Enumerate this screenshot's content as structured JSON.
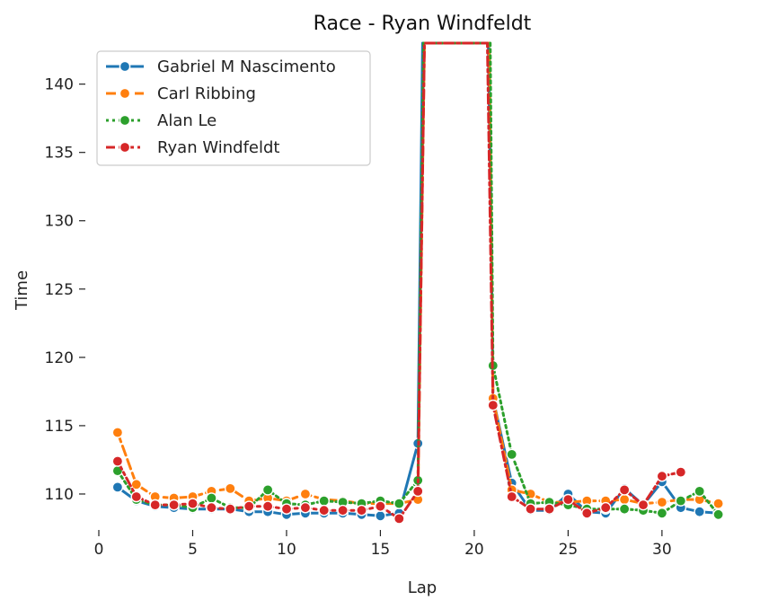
{
  "chart_data": {
    "type": "line",
    "title": "Race - Ryan Windfeldt",
    "xlabel": "Lap",
    "ylabel": "Time",
    "xlim": [
      0,
      33.5
    ],
    "ylim": [
      107.5,
      143
    ],
    "xticks": [
      "0",
      "5",
      "10",
      "15",
      "20",
      "25",
      "30"
    ],
    "yticks": [
      "110",
      "115",
      "120",
      "125",
      "130",
      "135",
      "140"
    ],
    "grid": false,
    "legend": "top-left",
    "series": [
      {
        "name": "Gabriel M Nascimento",
        "color": "#1f77b4",
        "dash": "solid",
        "points": [
          [
            1,
            110.5
          ],
          [
            2,
            109.5
          ],
          [
            3,
            109.1
          ],
          [
            4,
            109.0
          ],
          [
            5,
            108.9
          ],
          [
            6,
            108.9
          ],
          [
            7,
            108.9
          ],
          [
            8,
            108.7
          ],
          [
            9,
            108.7
          ],
          [
            10,
            108.5
          ],
          [
            11,
            108.6
          ],
          [
            12,
            108.6
          ],
          [
            13,
            108.6
          ],
          [
            14,
            108.5
          ],
          [
            15,
            108.4
          ],
          [
            16,
            108.6
          ],
          [
            17,
            113.7
          ],
          [
            18,
            null
          ],
          [
            19,
            null
          ],
          [
            20,
            null
          ],
          [
            21,
            null
          ],
          [
            22,
            110.8
          ],
          [
            23,
            108.8
          ],
          [
            24,
            108.8
          ],
          [
            25,
            110.0
          ],
          [
            26,
            108.7
          ],
          [
            27,
            108.6
          ],
          [
            28,
            110.4
          ],
          [
            29,
            109.2
          ],
          [
            30,
            110.9
          ],
          [
            31,
            109.0
          ],
          [
            32,
            108.7
          ],
          [
            33,
            108.6
          ]
        ],
        "spike": [
          [
            17.25,
            143
          ],
          [
            20.75,
            143
          ],
          [
            20.9,
            129.5
          ],
          [
            21,
            117.0
          ]
        ]
      },
      {
        "name": "Carl Ribbing",
        "color": "#ff7f0e",
        "dash": "dashed",
        "points": [
          [
            1,
            114.5
          ],
          [
            2,
            110.7
          ],
          [
            3,
            109.8
          ],
          [
            4,
            109.7
          ],
          [
            5,
            109.8
          ],
          [
            6,
            110.2
          ],
          [
            7,
            110.4
          ],
          [
            8,
            109.5
          ],
          [
            9,
            109.7
          ],
          [
            10,
            109.5
          ],
          [
            11,
            110.0
          ],
          [
            12,
            109.6
          ],
          [
            13,
            109.5
          ],
          [
            14,
            109.3
          ],
          [
            15,
            109.3
          ],
          [
            16,
            109.3
          ],
          [
            17,
            109.6
          ],
          [
            18,
            null
          ],
          [
            19,
            null
          ],
          [
            20,
            null
          ],
          [
            21,
            117.0
          ],
          [
            22,
            110.3
          ],
          [
            23,
            110.0
          ],
          [
            24,
            109.4
          ],
          [
            25,
            109.4
          ],
          [
            26,
            109.5
          ],
          [
            27,
            109.5
          ],
          [
            28,
            109.6
          ],
          [
            29,
            109.3
          ],
          [
            30,
            109.4
          ],
          [
            31,
            109.6
          ],
          [
            32,
            109.6
          ],
          [
            33,
            109.3
          ]
        ],
        "spike": [
          [
            17.35,
            143
          ],
          [
            20.8,
            143
          ],
          [
            21,
            117.0
          ]
        ]
      },
      {
        "name": "Alan Le",
        "color": "#2ca02c",
        "dash": "dotted",
        "points": [
          [
            1,
            111.7
          ],
          [
            2,
            109.6
          ],
          [
            3,
            109.2
          ],
          [
            4,
            109.2
          ],
          [
            5,
            109.0
          ],
          [
            6,
            109.7
          ],
          [
            7,
            109.0
          ],
          [
            8,
            109.0
          ],
          [
            9,
            110.3
          ],
          [
            10,
            109.3
          ],
          [
            11,
            109.2
          ],
          [
            12,
            109.5
          ],
          [
            13,
            109.4
          ],
          [
            14,
            109.3
          ],
          [
            15,
            109.5
          ],
          [
            16,
            109.3
          ],
          [
            17,
            111.0
          ],
          [
            18,
            null
          ],
          [
            19,
            null
          ],
          [
            20,
            null
          ],
          [
            21,
            119.4
          ],
          [
            22,
            112.9
          ],
          [
            23,
            109.3
          ],
          [
            24,
            109.4
          ],
          [
            25,
            109.2
          ],
          [
            26,
            108.9
          ],
          [
            27,
            108.9
          ],
          [
            28,
            108.9
          ],
          [
            29,
            108.8
          ],
          [
            30,
            108.6
          ],
          [
            31,
            109.5
          ],
          [
            32,
            110.2
          ],
          [
            33,
            108.5
          ]
        ],
        "spike": [
          [
            17.3,
            143
          ],
          [
            20.85,
            143
          ],
          [
            21,
            119.4
          ]
        ]
      },
      {
        "name": "Ryan Windfeldt",
        "color": "#d62728",
        "dash": "dashdot",
        "points": [
          [
            1,
            112.4
          ],
          [
            2,
            109.8
          ],
          [
            3,
            109.2
          ],
          [
            4,
            109.2
          ],
          [
            5,
            109.3
          ],
          [
            6,
            109.0
          ],
          [
            7,
            108.9
          ],
          [
            8,
            109.1
          ],
          [
            9,
            109.1
          ],
          [
            10,
            108.9
          ],
          [
            11,
            109.0
          ],
          [
            12,
            108.8
          ],
          [
            13,
            108.8
          ],
          [
            14,
            108.8
          ],
          [
            15,
            109.1
          ],
          [
            16,
            108.2
          ],
          [
            17,
            110.2
          ],
          [
            18,
            null
          ],
          [
            19,
            null
          ],
          [
            20,
            null
          ],
          [
            21,
            116.5
          ],
          [
            22,
            109.8
          ],
          [
            23,
            108.9
          ],
          [
            24,
            108.9
          ],
          [
            25,
            109.6
          ],
          [
            26,
            108.6
          ],
          [
            27,
            109.0
          ],
          [
            28,
            110.3
          ],
          [
            29,
            109.2
          ],
          [
            30,
            111.3
          ],
          [
            31,
            111.6
          ]
        ],
        "spike": [
          [
            17.35,
            143
          ],
          [
            20.7,
            143
          ],
          [
            21,
            116.5
          ]
        ]
      }
    ]
  }
}
